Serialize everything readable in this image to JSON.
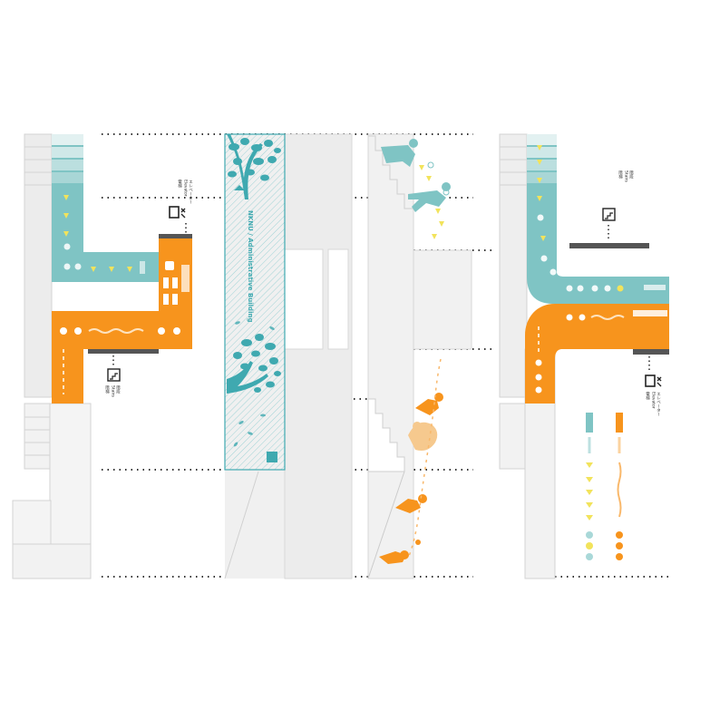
{
  "colors": {
    "teal": "#7fc4c4",
    "teal_dark": "#3fa9b0",
    "orange": "#f7941d",
    "orange_light": "#f9b86b",
    "sand": "#f6c98e",
    "yellow": "#f2e35b",
    "wall": "#eeeeee",
    "wall_line": "#d4d4d4",
    "dots": "#333333"
  },
  "banner": {
    "title": "NKNU / Administrative Building"
  },
  "signs": {
    "elevator_1": "電梯",
    "elevator_2": "Elevator",
    "elevator_3": "エレベーター",
    "stairs_1": "階梯",
    "stairs_2": "Stairs",
    "stairs_3": "階段"
  },
  "icons": [
    "elevator-icon",
    "stairs-icon",
    "wheelchair-icon",
    "restroom-icon",
    "tree-icon",
    "person-climbing-icon"
  ]
}
